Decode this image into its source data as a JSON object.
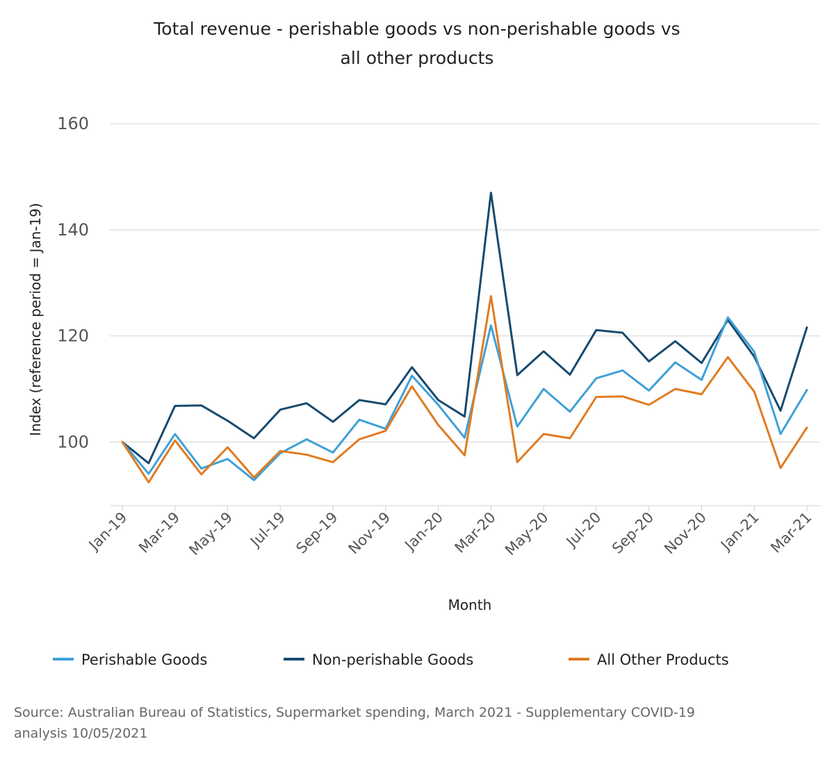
{
  "chart_data": {
    "type": "line",
    "title": [
      "Total revenue - perishable goods vs non-perishable goods vs",
      "all other products"
    ],
    "xlabel": "Month",
    "ylabel": "Index (reference period = Jan-19)",
    "ylim": [
      88,
      165
    ],
    "yticks": [
      100,
      120,
      140,
      160
    ],
    "x": [
      "Jan-19",
      "Feb-19",
      "Mar-19",
      "Apr-19",
      "May-19",
      "Jun-19",
      "Jul-19",
      "Aug-19",
      "Sep-19",
      "Oct-19",
      "Nov-19",
      "Dec-19",
      "Jan-20",
      "Feb-20",
      "Mar-20",
      "Apr-20",
      "May-20",
      "Jun-20",
      "Jul-20",
      "Aug-20",
      "Sep-20",
      "Oct-20",
      "Nov-20",
      "Dec-20",
      "Jan-21",
      "Feb-21",
      "Mar-21"
    ],
    "xtick_labels": [
      "Jan-19",
      "Mar-19",
      "May-19",
      "Jul-19",
      "Sep-19",
      "Nov-19",
      "Jan-20",
      "Mar-20",
      "May-20",
      "Jul-20",
      "Sep-20",
      "Nov-20",
      "Jan-21",
      "Mar-21"
    ],
    "grid": true,
    "legend_position": "bottom",
    "series": [
      {
        "name": "Perishable Goods",
        "color": "#3fa0d8",
        "values": [
          100,
          94,
          101.5,
          95,
          96.8,
          92.8,
          97.9,
          100.5,
          98,
          104.2,
          102.5,
          112.5,
          107,
          100.8,
          122,
          102.9,
          110,
          105.7,
          112,
          113.5,
          109.7,
          115,
          111.7,
          123.5,
          117,
          101.5,
          109.8
        ]
      },
      {
        "name": "Non-perishable Goods",
        "color": "#174a6e",
        "values": [
          100,
          96,
          106.8,
          106.9,
          104,
          100.7,
          106.1,
          107.3,
          103.8,
          107.9,
          107.1,
          114.1,
          107.9,
          104.8,
          147,
          112.6,
          117.1,
          112.7,
          121.1,
          120.6,
          115.2,
          119,
          114.9,
          123,
          116.1,
          105.9,
          121.6
        ]
      },
      {
        "name": "All Other Products",
        "color": "#e07b20",
        "values": [
          100,
          92.4,
          100.3,
          93.9,
          99,
          93.3,
          98.3,
          97.6,
          96.2,
          100.5,
          102.1,
          110.5,
          103.2,
          97.5,
          127.5,
          96.2,
          101.5,
          100.7,
          108.5,
          108.6,
          107,
          110,
          109,
          116,
          109.5,
          95.1,
          102.7
        ]
      }
    ]
  },
  "source_lines": [
    "Source: Australian Bureau of Statistics, Supermarket spending, March 2021 - Supplementary COVID-19",
    "analysis 10/05/2021"
  ]
}
